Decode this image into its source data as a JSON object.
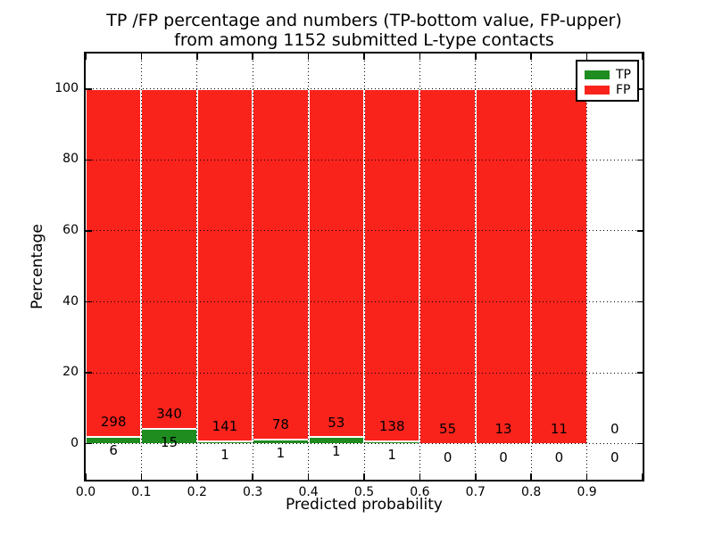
{
  "chart_data": {
    "type": "bar",
    "subtype": "stacked-percentage",
    "title_line1": "TP /FP percentage and numbers (TP-bottom value, FP-upper)",
    "title_line2": "from among 1152 submitted L-type contacts",
    "xlabel": "Predicted probability",
    "ylabel": "Percentage",
    "total_contacts": 1152,
    "xlim": [
      0.0,
      1.0
    ],
    "ylim": [
      -10,
      110
    ],
    "bin_width": 0.1,
    "x_tick_values": [
      0.0,
      0.1,
      0.2,
      0.3,
      0.4,
      0.5,
      0.6,
      0.7,
      0.8,
      0.9,
      1.0
    ],
    "x_tick_labels": [
      "0.0",
      "0.1",
      "0.2",
      "0.3",
      "0.4",
      "0.5",
      "0.6",
      "0.7",
      "0.8",
      "0.9",
      ""
    ],
    "y_tick_values": [
      0,
      20,
      40,
      60,
      80,
      100
    ],
    "y_tick_labels": [
      "0",
      "20",
      "40",
      "60",
      "80",
      "100"
    ],
    "bin_starts": [
      0.0,
      0.1,
      0.2,
      0.3,
      0.4,
      0.5,
      0.6,
      0.7,
      0.8,
      0.9
    ],
    "series": [
      {
        "name": "TP",
        "counts": [
          6,
          15,
          1,
          1,
          1,
          1,
          0,
          0,
          0,
          0
        ]
      },
      {
        "name": "FP",
        "counts": [
          298,
          340,
          141,
          78,
          53,
          138,
          55,
          13,
          11,
          0
        ]
      }
    ],
    "tp_labels": [
      "6",
      "15",
      "1",
      "1",
      "1",
      "1",
      "0",
      "0",
      "0",
      "0"
    ],
    "fp_labels": [
      "298",
      "340",
      "141",
      "78",
      "53",
      "138",
      "55",
      "13",
      "11",
      "0"
    ],
    "colors": {
      "tp": "#1e8c1e",
      "fp": "#fa231c",
      "bar_edge": "#ffffff",
      "grid": "#000000"
    },
    "grid": true,
    "legend": {
      "position": "upper right",
      "items": [
        {
          "label": "TP",
          "color": "#1e8c1e"
        },
        {
          "label": "FP",
          "color": "#fa231c"
        }
      ]
    }
  }
}
